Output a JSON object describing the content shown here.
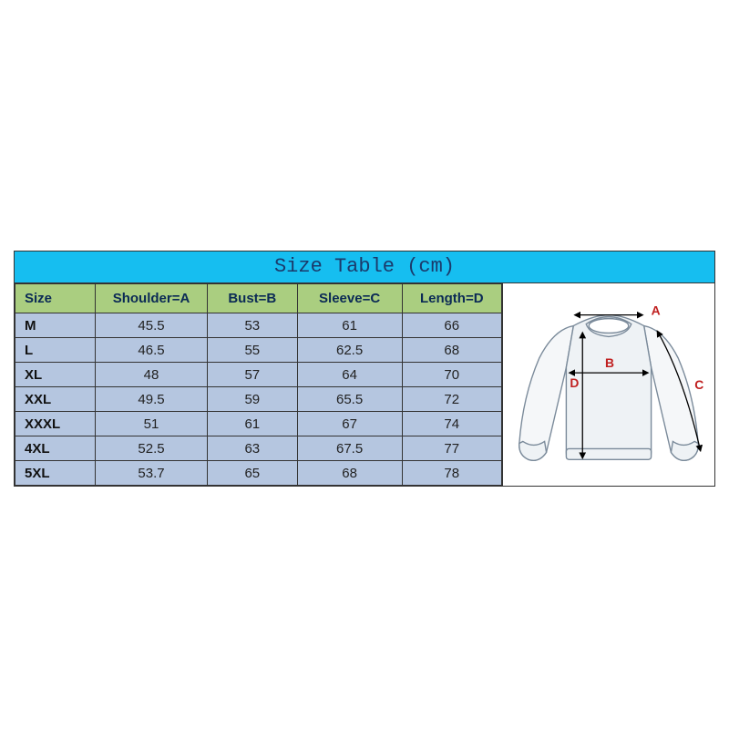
{
  "title": "Size Table (cm)",
  "title_bg": "#16bef0",
  "header_bg": "#aace80",
  "body_bg": "#b5c6e0",
  "border_color": "#333333",
  "col_widths_pct": [
    16.5,
    23,
    18.5,
    21.5,
    20.5
  ],
  "columns": [
    "Size",
    "Shoulder=A",
    "Bust=B",
    "Sleeve=C",
    "Length=D"
  ],
  "rows": [
    [
      "M",
      "45.5",
      "53",
      "61",
      "66"
    ],
    [
      "L",
      "46.5",
      "55",
      "62.5",
      "68"
    ],
    [
      "XL",
      "48",
      "57",
      "64",
      "70"
    ],
    [
      "XXL",
      "49.5",
      "59",
      "65.5",
      "72"
    ],
    [
      "XXXL",
      "51",
      "61",
      "67",
      "74"
    ],
    [
      "4XL",
      "52.5",
      "63",
      "67.5",
      "77"
    ],
    [
      "5XL",
      "53.7",
      "65",
      "68",
      "78"
    ]
  ],
  "diagram": {
    "bg": "#ffffff",
    "sweater_stroke": "#7a8a9a",
    "sweater_fill_outer": "#f5f7f9",
    "sweater_fill_inner": "#eef2f5",
    "arrow_color": "#000000",
    "label_color": "#c02020",
    "label_fontsize": 14,
    "labels": {
      "A": "A",
      "B": "B",
      "C": "C",
      "D": "D"
    }
  }
}
